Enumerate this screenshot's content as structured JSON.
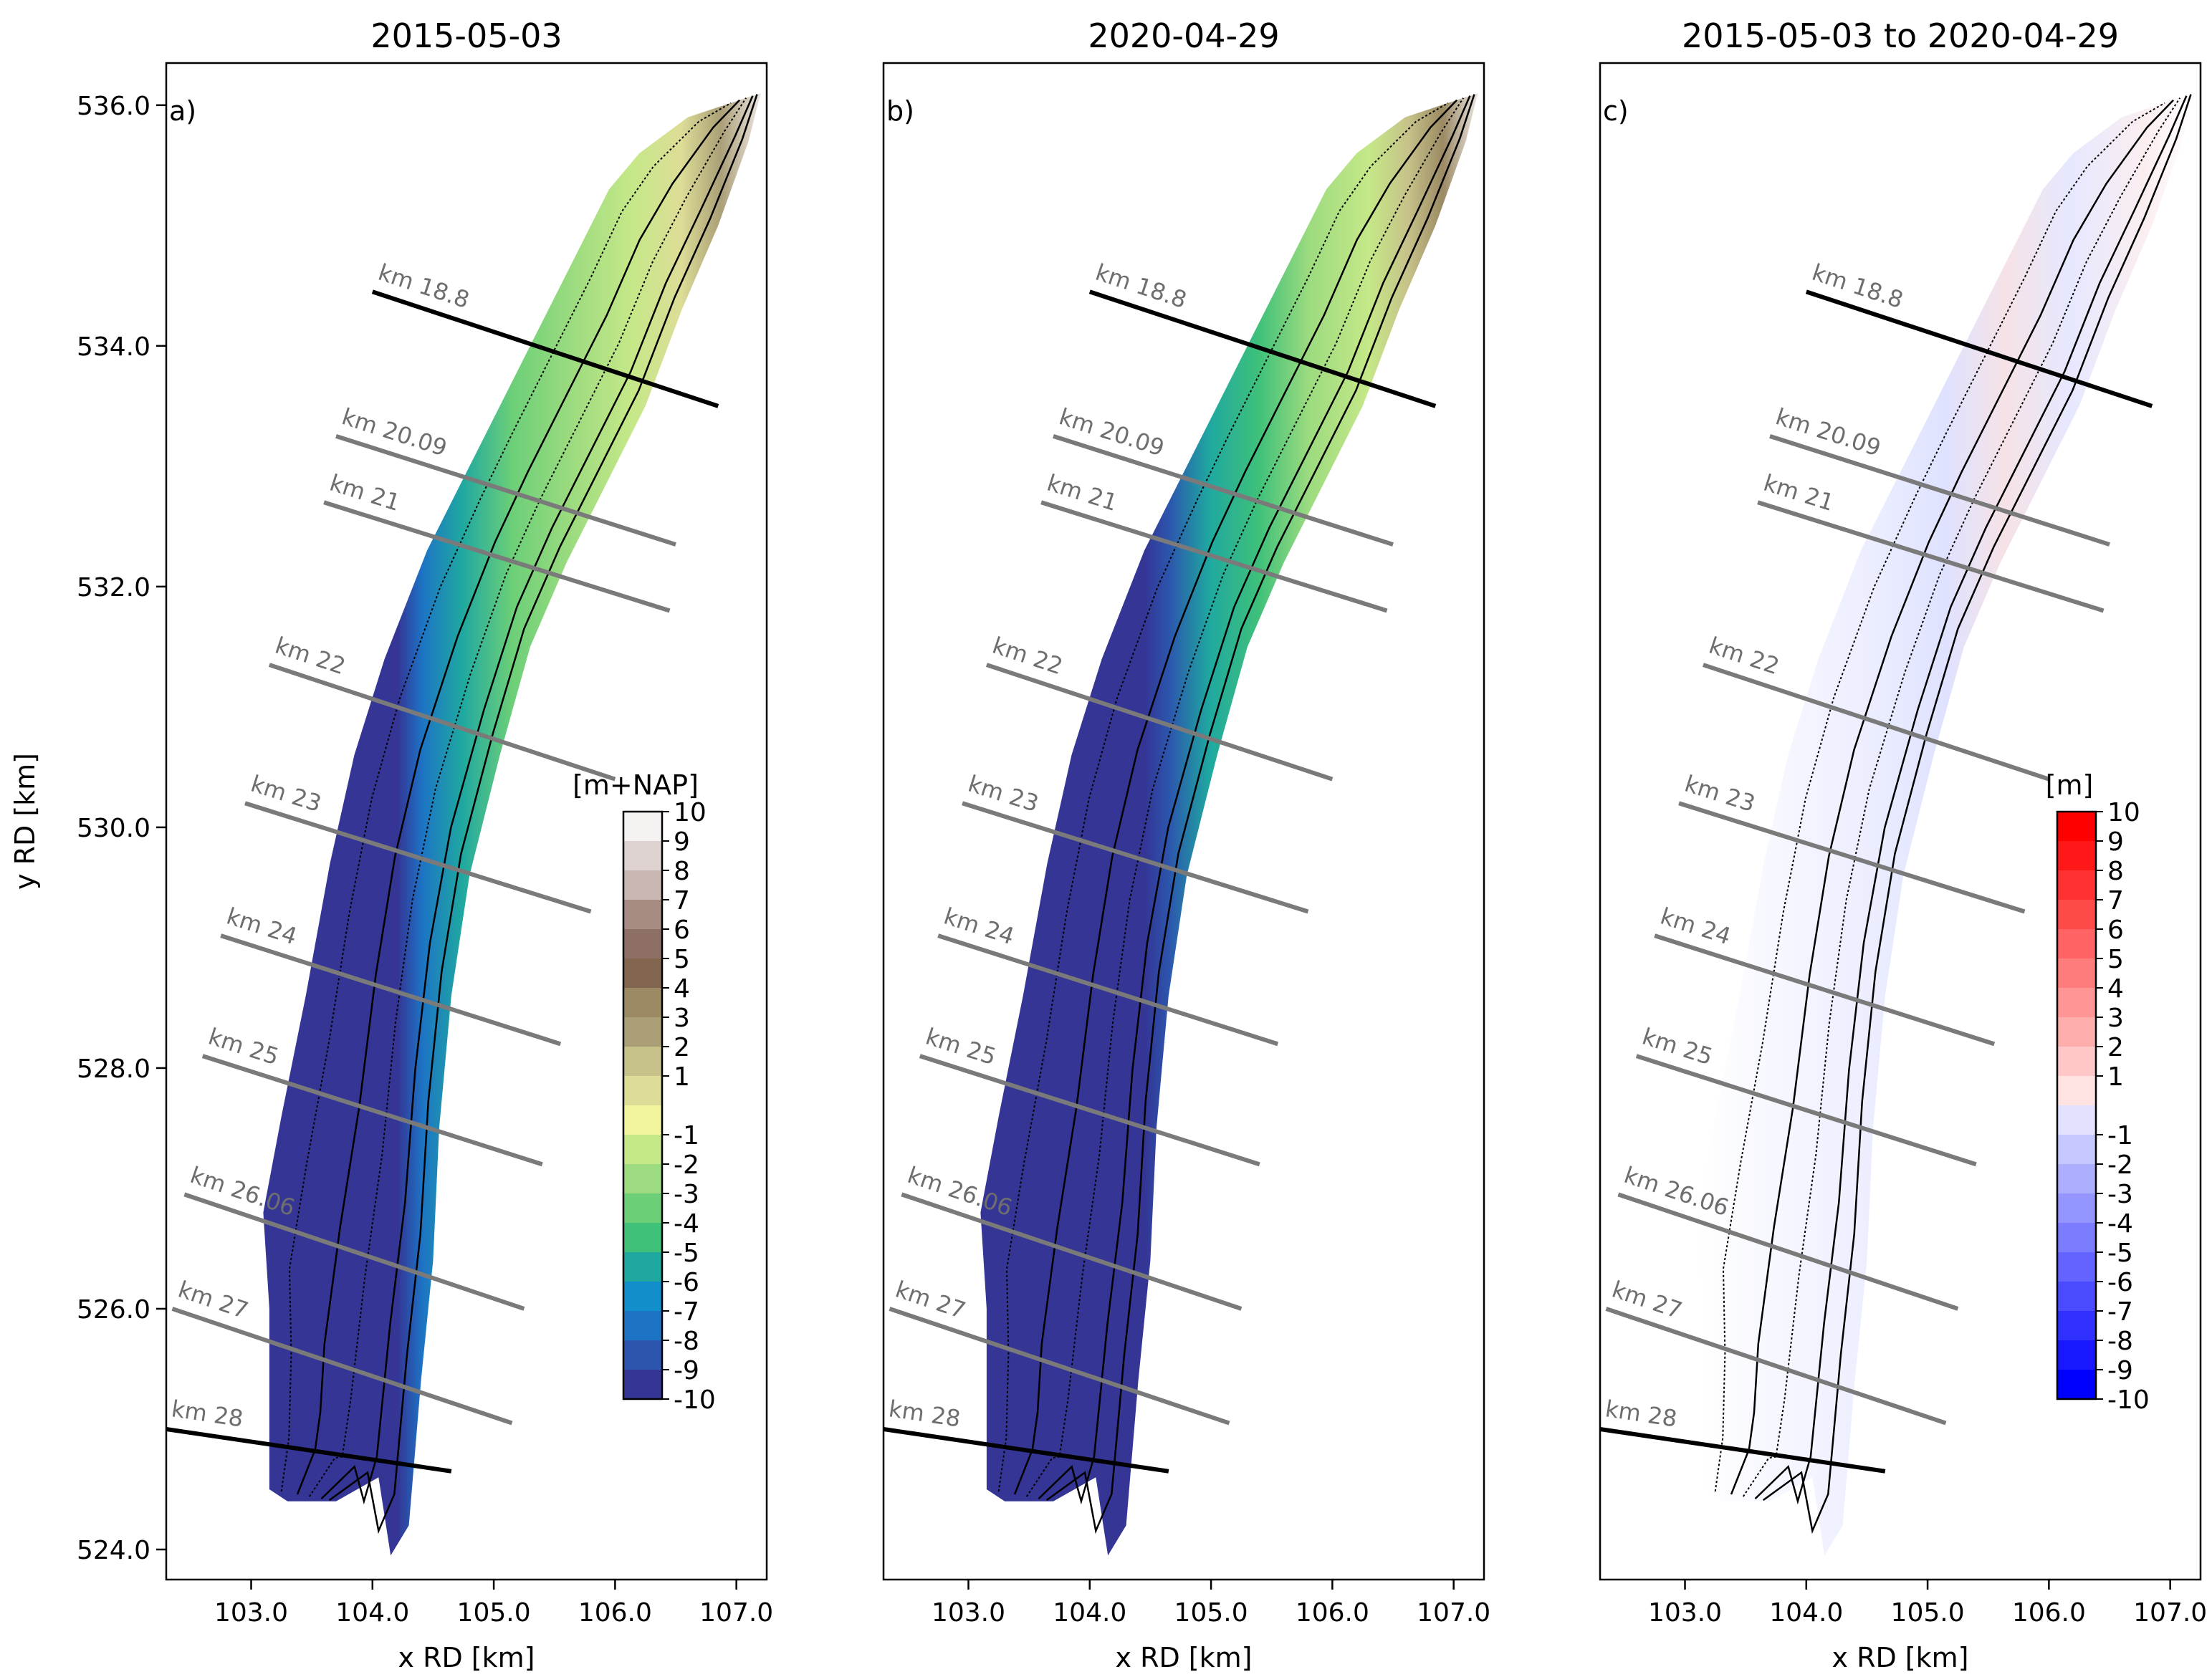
{
  "chart_data": [
    {
      "type": "map",
      "panel": "a)",
      "title": "2015-05-03",
      "xlabel": "x RD [km]",
      "ylabel": "y RD [km]",
      "xlim": [
        102.3,
        107.25
      ],
      "ylim": [
        523.75,
        536.35
      ],
      "xticks": [
        "103.0",
        "104.0",
        "105.0",
        "106.0",
        "107.0"
      ],
      "yticks": [
        "524.0",
        "526.0",
        "528.0",
        "530.0",
        "532.0",
        "534.0",
        "536.0"
      ],
      "colorbar": {
        "label": "[m+NAP]",
        "ticks": [
          "10",
          "9",
          "8",
          "7",
          "6",
          "5",
          "4",
          "3",
          "2",
          "1",
          "-1",
          "-2",
          "-3",
          "-4",
          "-5",
          "-6",
          "-7",
          "-8",
          "-9",
          "-10"
        ],
        "colors": [
          "#f5f3f2",
          "#ded3d0",
          "#c9b7b1",
          "#a68c83",
          "#8d6f66",
          "#836650",
          "#9b8a64",
          "#ab9f77",
          "#c7c289",
          "#dddd97",
          "#f3f59e",
          "#c5e888",
          "#9cdb7f",
          "#6ccf78",
          "#3fc17a",
          "#1fa8a0",
          "#128ecb",
          "#1d74c5",
          "#2c56ad",
          "#343595"
        ]
      },
      "profiles": [
        {
          "label": "km 18.8",
          "x1": 104.0,
          "y1": 534.45,
          "x2": 106.85,
          "y2": 533.5,
          "bold": true
        },
        {
          "label": "km 20.09",
          "x1": 103.7,
          "y1": 533.25,
          "x2": 106.5,
          "y2": 532.35,
          "bold": false
        },
        {
          "label": "km 21",
          "x1": 103.6,
          "y1": 532.7,
          "x2": 106.45,
          "y2": 531.8,
          "bold": false
        },
        {
          "label": "km 22",
          "x1": 103.15,
          "y1": 531.35,
          "x2": 106.0,
          "y2": 530.4,
          "bold": false
        },
        {
          "label": "km 23",
          "x1": 102.95,
          "y1": 530.2,
          "x2": 105.8,
          "y2": 529.3,
          "bold": false
        },
        {
          "label": "km 24",
          "x1": 102.75,
          "y1": 529.1,
          "x2": 105.55,
          "y2": 528.2,
          "bold": false
        },
        {
          "label": "km 25",
          "x1": 102.6,
          "y1": 528.1,
          "x2": 105.4,
          "y2": 527.2,
          "bold": false
        },
        {
          "label": "km 26.06",
          "x1": 102.45,
          "y1": 526.95,
          "x2": 105.25,
          "y2": 526.0,
          "bold": false
        },
        {
          "label": "km 27",
          "x1": 102.35,
          "y1": 526.0,
          "x2": 105.15,
          "y2": 525.05,
          "bold": false
        },
        {
          "label": "km 28",
          "x1": 102.3,
          "y1": 525.0,
          "x2": 104.65,
          "y2": 524.65,
          "bold": true
        }
      ]
    },
    {
      "type": "map",
      "panel": "b)",
      "title": "2020-04-29",
      "xlabel": "x RD [km]",
      "ylabel": "",
      "xlim": [
        102.3,
        107.25
      ],
      "ylim": [
        523.75,
        536.35
      ],
      "xticks": [
        "103.0",
        "104.0",
        "105.0",
        "106.0",
        "107.0"
      ],
      "yticks": []
    },
    {
      "type": "map",
      "panel": "c)",
      "title": "2015-05-03 to 2020-04-29",
      "xlabel": "x RD [km]",
      "ylabel": "",
      "xlim": [
        102.3,
        107.25
      ],
      "ylim": [
        523.75,
        536.35
      ],
      "xticks": [
        "103.0",
        "104.0",
        "105.0",
        "106.0",
        "107.0"
      ],
      "yticks": [],
      "colorbar": {
        "label": "[m]",
        "ticks": [
          "10",
          "9",
          "8",
          "7",
          "6",
          "5",
          "4",
          "3",
          "2",
          "1",
          "-1",
          "-2",
          "-3",
          "-4",
          "-5",
          "-6",
          "-7",
          "-8",
          "-9",
          "-10"
        ],
        "colors": [
          "#ff0000",
          "#ff1818",
          "#ff3131",
          "#ff4a4a",
          "#ff6363",
          "#ff7c7c",
          "#ff9595",
          "#ffaeae",
          "#ffc7c7",
          "#ffe2e2",
          "#e2e2ff",
          "#c7c7ff",
          "#aeaeff",
          "#9595ff",
          "#7c7cff",
          "#6363ff",
          "#4a4aff",
          "#3131ff",
          "#1818ff",
          "#0000ff"
        ]
      }
    }
  ]
}
